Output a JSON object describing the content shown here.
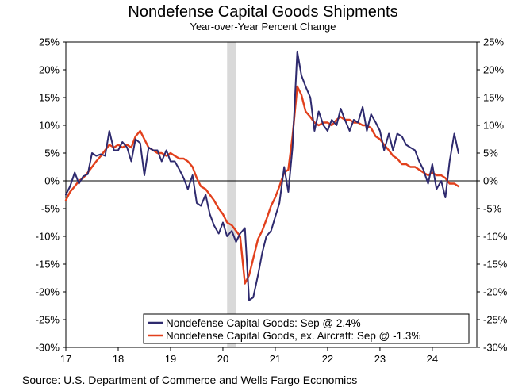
{
  "chart_data": {
    "type": "line",
    "title": "Nondefense Capital Goods Shipments",
    "subtitle": "Year-over-Year Percent Change",
    "source": "Source: U.S. Department of Commerce and Wells Fargo Economics",
    "ylim": [
      -30,
      25
    ],
    "yticks": [
      25,
      20,
      15,
      10,
      5,
      0,
      -5,
      -10,
      -15,
      -20,
      -25,
      -30
    ],
    "ytick_labels": [
      "25%",
      "20%",
      "15%",
      "10%",
      "5%",
      "0%",
      "-5%",
      "-10%",
      "-15%",
      "-20%",
      "-25%",
      "-30%"
    ],
    "xlim": [
      2017.0,
      2024.85
    ],
    "xticks": [
      2017,
      2018,
      2019,
      2020,
      2021,
      2022,
      2023,
      2024
    ],
    "xtick_labels": [
      "17",
      "18",
      "19",
      "20",
      "21",
      "22",
      "23",
      "24"
    ],
    "recession": {
      "start": 2020.08,
      "end": 2020.25
    },
    "colors": {
      "series1": "#2e2a6e",
      "series2": "#e2401c",
      "recession": "#d9d9d9",
      "zeroline": "#000000"
    },
    "series": [
      {
        "name": "Nondefense Capital Goods",
        "legend": "Nondefense Capital Goods: Sep @ 2.4%",
        "color": "#2e2a6e",
        "points": [
          [
            2017.0,
            -2.5
          ],
          [
            2017.08,
            -1.0
          ],
          [
            2017.17,
            1.5
          ],
          [
            2017.25,
            -0.5
          ],
          [
            2017.33,
            0.8
          ],
          [
            2017.42,
            1.2
          ],
          [
            2017.5,
            5.0
          ],
          [
            2017.58,
            4.5
          ],
          [
            2017.67,
            4.8
          ],
          [
            2017.75,
            4.5
          ],
          [
            2017.83,
            9.0
          ],
          [
            2017.92,
            5.5
          ],
          [
            2018.0,
            5.5
          ],
          [
            2018.08,
            7.0
          ],
          [
            2018.17,
            6.0
          ],
          [
            2018.25,
            3.5
          ],
          [
            2018.33,
            7.5
          ],
          [
            2018.42,
            6.8
          ],
          [
            2018.5,
            1.0
          ],
          [
            2018.58,
            6.0
          ],
          [
            2018.67,
            5.5
          ],
          [
            2018.75,
            5.5
          ],
          [
            2018.83,
            3.5
          ],
          [
            2018.92,
            5.5
          ],
          [
            2019.0,
            3.5
          ],
          [
            2019.08,
            3.5
          ],
          [
            2019.17,
            2.0
          ],
          [
            2019.25,
            0.5
          ],
          [
            2019.33,
            -1.5
          ],
          [
            2019.42,
            1.0
          ],
          [
            2019.5,
            -4.0
          ],
          [
            2019.58,
            -4.5
          ],
          [
            2019.67,
            -2.5
          ],
          [
            2019.75,
            -6.0
          ],
          [
            2019.83,
            -8.0
          ],
          [
            2019.92,
            -9.5
          ],
          [
            2020.0,
            -7.5
          ],
          [
            2020.08,
            -10.0
          ],
          [
            2020.17,
            -9.0
          ],
          [
            2020.25,
            -11.0
          ],
          [
            2020.33,
            -9.5
          ],
          [
            2020.42,
            -8.5
          ],
          [
            2020.5,
            -21.5
          ],
          [
            2020.58,
            -21.0
          ],
          [
            2020.67,
            -17.0
          ],
          [
            2020.75,
            -13.0
          ],
          [
            2020.83,
            -10.0
          ],
          [
            2020.92,
            -9.0
          ],
          [
            2021.0,
            -6.5
          ],
          [
            2021.08,
            -4.0
          ],
          [
            2021.17,
            2.5
          ],
          [
            2021.25,
            -2.0
          ],
          [
            2021.33,
            6.0
          ],
          [
            2021.42,
            23.3
          ],
          [
            2021.5,
            19.0
          ],
          [
            2021.58,
            17.0
          ],
          [
            2021.67,
            15.0
          ],
          [
            2021.75,
            9.0
          ],
          [
            2021.83,
            12.5
          ],
          [
            2021.92,
            10.0
          ],
          [
            2022.0,
            9.0
          ],
          [
            2022.08,
            11.0
          ],
          [
            2022.17,
            10.0
          ],
          [
            2022.25,
            13.0
          ],
          [
            2022.33,
            11.0
          ],
          [
            2022.42,
            9.0
          ],
          [
            2022.5,
            11.0
          ],
          [
            2022.58,
            10.5
          ],
          [
            2022.67,
            13.3
          ],
          [
            2022.75,
            9.0
          ],
          [
            2022.83,
            12.0
          ],
          [
            2022.92,
            10.5
          ],
          [
            2023.0,
            9.0
          ],
          [
            2023.08,
            5.5
          ],
          [
            2023.17,
            8.5
          ],
          [
            2023.25,
            5.5
          ],
          [
            2023.33,
            8.5
          ],
          [
            2023.42,
            8.0
          ],
          [
            2023.5,
            6.5
          ],
          [
            2023.58,
            6.0
          ],
          [
            2023.67,
            5.5
          ],
          [
            2023.75,
            3.5
          ],
          [
            2023.83,
            2.0
          ],
          [
            2023.92,
            -0.5
          ],
          [
            2024.0,
            3.0
          ],
          [
            2024.08,
            -1.5
          ],
          [
            2024.17,
            0.0
          ],
          [
            2024.25,
            -3.0
          ],
          [
            2024.33,
            3.5
          ],
          [
            2024.42,
            8.5
          ],
          [
            2024.5,
            5.0
          ]
        ]
      },
      {
        "name": "Nondefense Capital Goods, ex. Aircraft",
        "legend": "Nondefense Capital Goods, ex. Aircraft: Sep @ -1.3%",
        "color": "#e2401c",
        "points": [
          [
            2017.0,
            -3.5
          ],
          [
            2017.08,
            -2.0
          ],
          [
            2017.17,
            -1.0
          ],
          [
            2017.25,
            0.0
          ],
          [
            2017.33,
            0.5
          ],
          [
            2017.42,
            1.5
          ],
          [
            2017.5,
            2.5
          ],
          [
            2017.58,
            3.5
          ],
          [
            2017.67,
            4.5
          ],
          [
            2017.75,
            5.5
          ],
          [
            2017.83,
            6.5
          ],
          [
            2017.92,
            6.0
          ],
          [
            2018.0,
            6.5
          ],
          [
            2018.08,
            6.0
          ],
          [
            2018.17,
            6.5
          ],
          [
            2018.25,
            6.0
          ],
          [
            2018.33,
            8.0
          ],
          [
            2018.42,
            9.0
          ],
          [
            2018.5,
            7.5
          ],
          [
            2018.58,
            6.0
          ],
          [
            2018.67,
            5.5
          ],
          [
            2018.75,
            5.0
          ],
          [
            2018.83,
            5.0
          ],
          [
            2018.92,
            4.5
          ],
          [
            2019.0,
            5.0
          ],
          [
            2019.08,
            4.5
          ],
          [
            2019.17,
            4.0
          ],
          [
            2019.25,
            4.0
          ],
          [
            2019.33,
            3.5
          ],
          [
            2019.42,
            2.5
          ],
          [
            2019.5,
            0.5
          ],
          [
            2019.58,
            -1.0
          ],
          [
            2019.67,
            -1.5
          ],
          [
            2019.75,
            -2.5
          ],
          [
            2019.83,
            -3.5
          ],
          [
            2019.92,
            -5.0
          ],
          [
            2020.0,
            -6.0
          ],
          [
            2020.08,
            -7.5
          ],
          [
            2020.17,
            -8.0
          ],
          [
            2020.25,
            -9.0
          ],
          [
            2020.33,
            -10.0
          ],
          [
            2020.42,
            -18.5
          ],
          [
            2020.5,
            -17.0
          ],
          [
            2020.58,
            -14.0
          ],
          [
            2020.67,
            -10.5
          ],
          [
            2020.75,
            -9.0
          ],
          [
            2020.83,
            -7.0
          ],
          [
            2020.92,
            -4.5
          ],
          [
            2021.0,
            -3.0
          ],
          [
            2021.08,
            -1.0
          ],
          [
            2021.17,
            1.5
          ],
          [
            2021.25,
            2.0
          ],
          [
            2021.33,
            8.0
          ],
          [
            2021.42,
            17.0
          ],
          [
            2021.5,
            15.5
          ],
          [
            2021.58,
            12.5
          ],
          [
            2021.67,
            11.5
          ],
          [
            2021.75,
            10.5
          ],
          [
            2021.83,
            10.0
          ],
          [
            2021.92,
            10.5
          ],
          [
            2022.0,
            10.5
          ],
          [
            2022.08,
            10.0
          ],
          [
            2022.17,
            11.0
          ],
          [
            2022.25,
            11.5
          ],
          [
            2022.33,
            11.0
          ],
          [
            2022.42,
            11.0
          ],
          [
            2022.5,
            10.5
          ],
          [
            2022.58,
            10.5
          ],
          [
            2022.67,
            10.0
          ],
          [
            2022.75,
            10.0
          ],
          [
            2022.83,
            9.5
          ],
          [
            2022.92,
            8.0
          ],
          [
            2023.0,
            7.5
          ],
          [
            2023.08,
            6.5
          ],
          [
            2023.17,
            5.5
          ],
          [
            2023.25,
            4.5
          ],
          [
            2023.33,
            4.0
          ],
          [
            2023.42,
            3.0
          ],
          [
            2023.5,
            3.0
          ],
          [
            2023.58,
            2.5
          ],
          [
            2023.67,
            2.5
          ],
          [
            2023.75,
            2.0
          ],
          [
            2023.83,
            1.5
          ],
          [
            2023.92,
            1.0
          ],
          [
            2024.0,
            1.5
          ],
          [
            2024.08,
            1.0
          ],
          [
            2024.17,
            1.0
          ],
          [
            2024.25,
            0.5
          ],
          [
            2024.33,
            -0.5
          ],
          [
            2024.42,
            -0.5
          ],
          [
            2024.5,
            -1.0
          ]
        ]
      }
    ]
  }
}
